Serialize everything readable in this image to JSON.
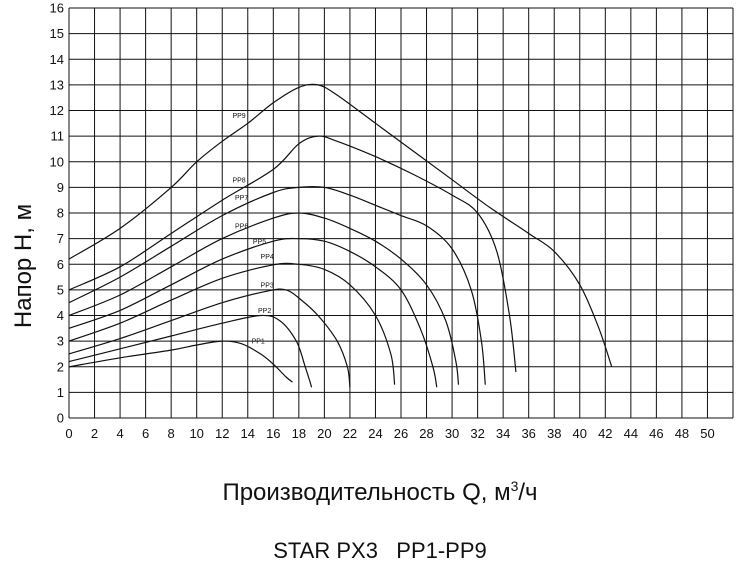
{
  "chart_data": {
    "type": "line",
    "title": "STAR PX3   PP1-PP9",
    "xlabel": {
      "text": "Производительность Q, м",
      "sup": "3",
      "suffix": "/ч"
    },
    "ylabel": "Напор H, м",
    "xlim": [
      0,
      52
    ],
    "ylim": [
      0,
      16
    ],
    "xticks": [
      0,
      2,
      4,
      6,
      8,
      10,
      12,
      14,
      16,
      18,
      20,
      22,
      24,
      26,
      28,
      30,
      32,
      34,
      36,
      38,
      40,
      42,
      44,
      46,
      48,
      50
    ],
    "yticks": [
      0,
      1,
      2,
      3,
      4,
      5,
      6,
      7,
      8,
      9,
      10,
      11,
      12,
      13,
      14,
      15,
      16
    ],
    "grid": true,
    "series": [
      {
        "name": "PP1",
        "label_at": [
          14.3,
          2.9
        ],
        "points": [
          [
            0,
            2
          ],
          [
            4,
            2.35
          ],
          [
            8,
            2.65
          ],
          [
            10,
            2.85
          ],
          [
            12,
            3.0
          ],
          [
            13.5,
            2.9
          ],
          [
            15,
            2.5
          ],
          [
            16,
            2.1
          ],
          [
            17,
            1.6
          ],
          [
            17.5,
            1.4
          ]
        ]
      },
      {
        "name": "PP2",
        "label_at": [
          14.8,
          4.1
        ],
        "points": [
          [
            0,
            2.2
          ],
          [
            4,
            2.7
          ],
          [
            8,
            3.2
          ],
          [
            12,
            3.7
          ],
          [
            15,
            4.0
          ],
          [
            16.5,
            3.8
          ],
          [
            17.8,
            3.0
          ],
          [
            18.5,
            2.0
          ],
          [
            19,
            1.2
          ]
        ]
      },
      {
        "name": "PP3",
        "label_at": [
          15.0,
          5.1
        ],
        "points": [
          [
            0,
            2.5
          ],
          [
            4,
            3.1
          ],
          [
            8,
            3.8
          ],
          [
            12,
            4.5
          ],
          [
            15.5,
            4.95
          ],
          [
            17,
            5.0
          ],
          [
            18.2,
            4.6
          ],
          [
            19.5,
            4.0
          ],
          [
            21,
            3.0
          ],
          [
            21.8,
            2.0
          ],
          [
            22,
            1.2
          ]
        ]
      },
      {
        "name": "PP4",
        "label_at": [
          15.0,
          6.2
        ],
        "points": [
          [
            0,
            3
          ],
          [
            4,
            3.7
          ],
          [
            8,
            4.6
          ],
          [
            12,
            5.45
          ],
          [
            16,
            5.98
          ],
          [
            18,
            6.0
          ],
          [
            20,
            5.8
          ],
          [
            22,
            5.2
          ],
          [
            24,
            4.0
          ],
          [
            25.2,
            2.5
          ],
          [
            25.5,
            1.3
          ]
        ]
      },
      {
        "name": "PP5",
        "label_at": [
          14.4,
          6.8
        ],
        "points": [
          [
            0,
            3.5
          ],
          [
            4,
            4.2
          ],
          [
            8,
            5.2
          ],
          [
            12,
            6.2
          ],
          [
            16,
            6.9
          ],
          [
            18,
            7.0
          ],
          [
            20,
            6.9
          ],
          [
            22,
            6.5
          ],
          [
            24,
            5.9
          ],
          [
            26,
            5.0
          ],
          [
            27.5,
            3.5
          ],
          [
            28.5,
            2.0
          ],
          [
            28.8,
            1.2
          ]
        ]
      },
      {
        "name": "PP6",
        "label_at": [
          13.0,
          7.4
        ],
        "points": [
          [
            0,
            4.0
          ],
          [
            4,
            4.8
          ],
          [
            8,
            5.9
          ],
          [
            12,
            7.0
          ],
          [
            16,
            7.8
          ],
          [
            18,
            8.0
          ],
          [
            20,
            7.8
          ],
          [
            22,
            7.4
          ],
          [
            24,
            6.9
          ],
          [
            26,
            6.2
          ],
          [
            28,
            5.2
          ],
          [
            29.5,
            3.8
          ],
          [
            30.3,
            2.2
          ],
          [
            30.5,
            1.3
          ]
        ]
      },
      {
        "name": "PP7",
        "label_at": [
          13.0,
          8.5
        ],
        "points": [
          [
            0,
            4.5
          ],
          [
            4,
            5.5
          ],
          [
            8,
            6.7
          ],
          [
            12,
            7.9
          ],
          [
            16,
            8.8
          ],
          [
            18,
            9.0
          ],
          [
            20,
            9.0
          ],
          [
            22,
            8.7
          ],
          [
            24,
            8.3
          ],
          [
            26,
            7.9
          ],
          [
            28,
            7.5
          ],
          [
            30,
            6.6
          ],
          [
            31.5,
            5.0
          ],
          [
            32.3,
            3.0
          ],
          [
            32.6,
            1.3
          ]
        ]
      },
      {
        "name": "PP8",
        "label_at": [
          12.8,
          9.2
        ],
        "points": [
          [
            0,
            5.0
          ],
          [
            4,
            5.9
          ],
          [
            8,
            7.2
          ],
          [
            12,
            8.5
          ],
          [
            16,
            9.7
          ],
          [
            18,
            10.7
          ],
          [
            19.5,
            11.0
          ],
          [
            21,
            10.8
          ],
          [
            24,
            10.2
          ],
          [
            27,
            9.5
          ],
          [
            30,
            8.7
          ],
          [
            32,
            8.0
          ],
          [
            33.5,
            6.5
          ],
          [
            34.5,
            4.0
          ],
          [
            35,
            1.8
          ]
        ]
      },
      {
        "name": "PP9",
        "label_at": [
          12.8,
          11.7
        ],
        "points": [
          [
            0,
            6.2
          ],
          [
            4,
            7.4
          ],
          [
            8,
            9.0
          ],
          [
            10,
            10.0
          ],
          [
            12,
            10.8
          ],
          [
            14,
            11.5
          ],
          [
            16,
            12.3
          ],
          [
            18,
            12.9
          ],
          [
            19.5,
            13.0
          ],
          [
            21,
            12.6
          ],
          [
            24,
            11.5
          ],
          [
            27,
            10.4
          ],
          [
            30,
            9.3
          ],
          [
            33,
            8.2
          ],
          [
            36,
            7.2
          ],
          [
            38,
            6.5
          ],
          [
            40,
            5.2
          ],
          [
            41.5,
            3.5
          ],
          [
            42.5,
            2.0
          ]
        ]
      }
    ]
  }
}
